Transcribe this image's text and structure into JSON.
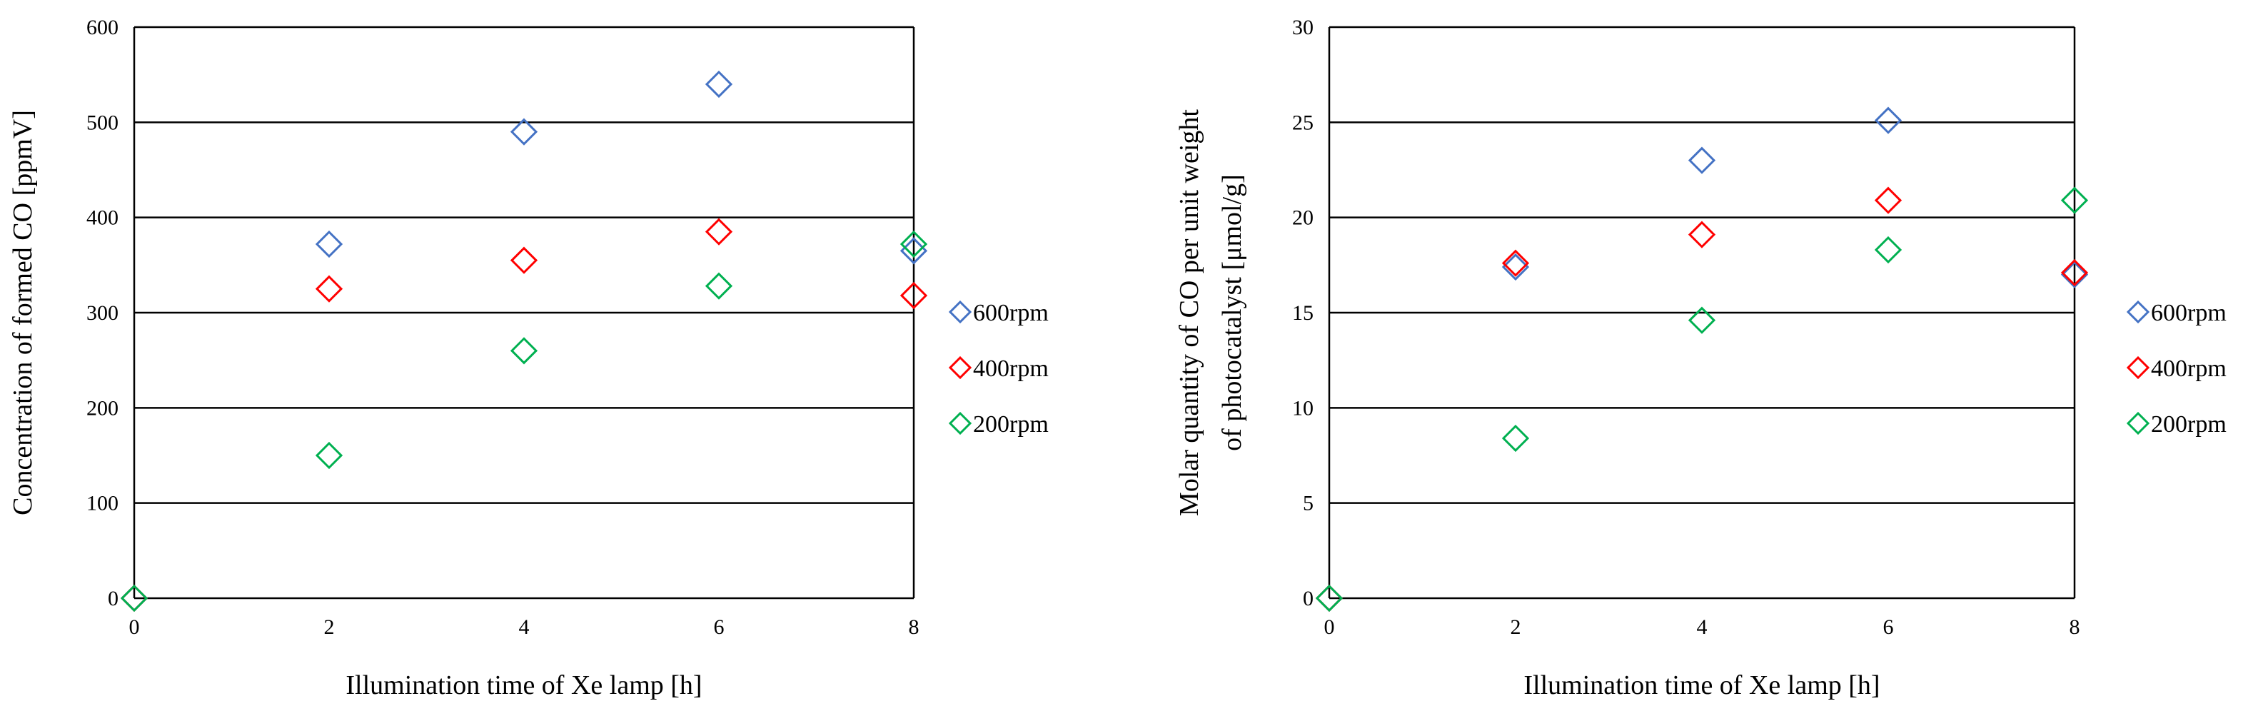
{
  "chart_data": [
    {
      "type": "scatter",
      "title": "",
      "xlabel": "Illumination  time  of Xe lamp  [h]",
      "ylabel_lines": [
        "Concentration  of formed  CO [ppmV]"
      ],
      "xlim": [
        0,
        8
      ],
      "ylim": [
        0,
        600
      ],
      "xticks": [
        "0",
        "2",
        "4",
        "6",
        "8"
      ],
      "yticks": [
        "0",
        "100",
        "200",
        "300",
        "400",
        "500",
        "600"
      ],
      "grid": "horizontal",
      "legend_position": "right",
      "series": [
        {
          "name": "600rpm",
          "color": "#4472c4",
          "x": [
            0,
            2,
            4,
            6,
            8
          ],
          "y": [
            0,
            372,
            490,
            540,
            365
          ]
        },
        {
          "name": "400rpm",
          "color": "#ff0000",
          "x": [
            0,
            2,
            4,
            6,
            8
          ],
          "y": [
            0,
            325,
            355,
            385,
            318
          ]
        },
        {
          "name": "200rpm",
          "color": "#00b050",
          "x": [
            0,
            2,
            4,
            6,
            8
          ],
          "y": [
            0,
            150,
            260,
            328,
            372
          ]
        }
      ]
    },
    {
      "type": "scatter",
      "title": "",
      "xlabel": "Illumination  time  of Xe lamp  [h]",
      "ylabel_lines": [
        "Molar  quantity  of CO per unit  weight",
        "of photocatalyst  [μmol/g]"
      ],
      "xlim": [
        0,
        8
      ],
      "ylim": [
        0,
        30
      ],
      "xticks": [
        "0",
        "2",
        "4",
        "6",
        "8"
      ],
      "yticks": [
        "0",
        "5",
        "10",
        "15",
        "20",
        "25",
        "30"
      ],
      "grid": "horizontal",
      "legend_position": "right",
      "series": [
        {
          "name": "600rpm",
          "color": "#4472c4",
          "x": [
            0,
            2,
            4,
            6,
            8
          ],
          "y": [
            0,
            17.4,
            23.0,
            25.1,
            17.0
          ]
        },
        {
          "name": "400rpm",
          "color": "#ff0000",
          "x": [
            0,
            2,
            4,
            6,
            8
          ],
          "y": [
            0,
            17.6,
            19.1,
            20.9,
            17.1
          ]
        },
        {
          "name": "200rpm",
          "color": "#00b050",
          "x": [
            0,
            2,
            4,
            6,
            8
          ],
          "y": [
            0,
            8.4,
            14.6,
            18.3,
            20.9
          ]
        }
      ]
    }
  ]
}
